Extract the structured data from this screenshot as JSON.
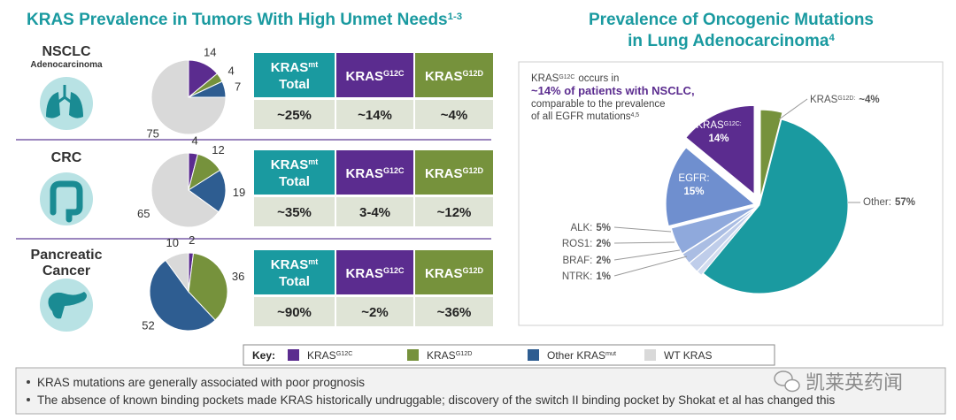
{
  "left_title": {
    "text": "KRAS Prevalence in Tumors With High Unmet Needs",
    "sup": "1-3"
  },
  "right_title": {
    "line1": "Prevalence of Oncogenic Mutations",
    "line2": "in Lung Adenocarcinoma",
    "sup": "4"
  },
  "table_header": [
    {
      "text": "KRAS",
      "sup": "mt",
      "line2": "Total"
    },
    {
      "text": "KRAS",
      "sup": "G12C"
    },
    {
      "text": "KRAS",
      "sup": "G12D"
    }
  ],
  "tables": [
    [
      "~25%",
      "~14%",
      "~4%"
    ],
    [
      "~35%",
      "3-4%",
      "~12%"
    ],
    [
      "~90%",
      "~2%",
      "~36%"
    ]
  ],
  "callout": {
    "text": "KRAS",
    "sup": "G12C",
    "rest": "occurs in",
    "line2": "~14% of patients with NSCLC,",
    "line3": "comparable to the prevalence",
    "line4": "of all EGFR mutations",
    "line4_sup": "4,5"
  },
  "key_label": "Key:",
  "notes": [
    "KRAS mutations are generally associated with poor prognosis",
    "The absence of known binding pockets made KRAS historically undruggable; discovery of the switch II binding pocket by Shokat et al has changed this"
  ],
  "watermark": "凯莱英药闻",
  "chart_data": [
    {
      "type": "pie",
      "title": "NSCLC",
      "subtitle": "Adenocarcinoma",
      "categories": [
        "KRAS",
        "KRAS",
        "Other KRAS",
        "WT KRAS"
      ],
      "superscripts": {
        "0": "G12C",
        "1": "G12D",
        "2": "mut"
      },
      "values": [
        14,
        4,
        7,
        75
      ],
      "colors": [
        "#5b2c8f",
        "#76923c",
        "#2e5d91",
        "#d9d9d9"
      ]
    },
    {
      "type": "pie",
      "title": "CRC",
      "categories": [
        "KRAS",
        "KRAS",
        "Other KRAS",
        "WT KRAS"
      ],
      "superscripts": {
        "0": "G12C",
        "1": "G12D",
        "2": "mut"
      },
      "values": [
        4,
        12,
        19,
        65
      ],
      "colors": [
        "#5b2c8f",
        "#76923c",
        "#2e5d91",
        "#d9d9d9"
      ]
    },
    {
      "type": "pie",
      "title": "Pancreatic Cancer",
      "categories": [
        "KRAS",
        "KRAS",
        "Other KRAS",
        "WT KRAS"
      ],
      "superscripts": {
        "0": "G12C",
        "1": "G12D",
        "2": "mut"
      },
      "values": [
        2,
        36,
        52,
        10
      ],
      "colors": [
        "#5b2c8f",
        "#76923c",
        "#2e5d91",
        "#d9d9d9"
      ]
    },
    {
      "type": "pie",
      "categories": [
        "KRAS",
        "KRAS",
        "Other:",
        "NTRK:",
        "BRAF:",
        "ROS1:",
        "ALK:",
        "EGFR:"
      ],
      "superscripts": {
        "0": "G12C:",
        "1": "G12D:"
      },
      "values": [
        14,
        4,
        57,
        1,
        2,
        2,
        5,
        15
      ],
      "value_labels": [
        "14%",
        "~4%",
        "57%",
        "1%",
        "2%",
        "2%",
        "5%",
        "15%"
      ],
      "colors": [
        "#5b2c8f",
        "#76923c",
        "#1a9aa0",
        "#d3ddf0",
        "#bfcdea",
        "#aabde3",
        "#8fa9dc",
        "#6f8fcf"
      ]
    }
  ]
}
